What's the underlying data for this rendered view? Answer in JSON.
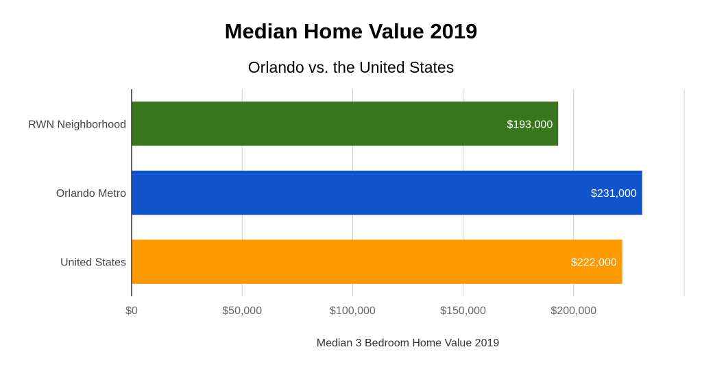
{
  "chart_data": {
    "type": "bar",
    "orientation": "horizontal",
    "title": "Median Home Value 2019",
    "subtitle": "Orlando vs. the United States",
    "xlabel": "Median 3 Bedroom Home Value 2019",
    "ylabel": "",
    "categories": [
      "RWN Neighborhood",
      "Orlando Metro",
      "United States"
    ],
    "values": [
      193000,
      231000,
      222000
    ],
    "data_labels": [
      "$193,000",
      "$231,000",
      "$222,000"
    ],
    "colors": [
      "#38761d",
      "#1155cc",
      "#ff9900"
    ],
    "xlim": [
      0,
      250000
    ],
    "x_ticks": [
      0,
      50000,
      100000,
      150000,
      200000
    ],
    "x_tick_labels": [
      "$0",
      "$50,000",
      "$100,000",
      "$150,000",
      "$200,000"
    ],
    "grid": true,
    "legend": "none"
  }
}
